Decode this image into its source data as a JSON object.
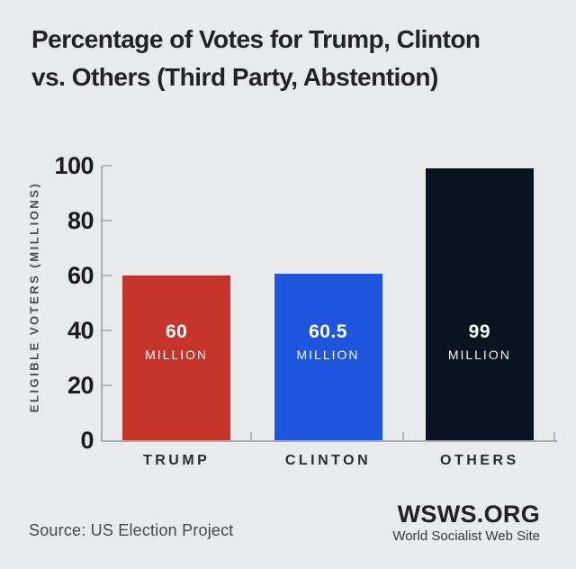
{
  "header": {
    "title_lines": [
      "Percentage of Votes for Trump, Clinton",
      "vs. Others (Third Party, Abstention)"
    ]
  },
  "chart_data": {
    "type": "bar",
    "title": "Percentage of Votes for Trump, Clinton vs. Others (Third Party, Abstention)",
    "categories": [
      "TRUMP",
      "CLINTON",
      "OTHERS"
    ],
    "values": [
      60,
      60.5,
      99
    ],
    "value_labels": [
      "60",
      "60.5",
      "99"
    ],
    "unit_label": "MILLION",
    "bar_colors": [
      "#c5342a",
      "#1f56df",
      "#081520"
    ],
    "bar_label_text_color": "#ffffff",
    "ylabel": "ELIGIBLE VOTERS (MILLIONS)",
    "xlabel": "",
    "yticks": [
      0,
      20,
      40,
      60,
      80,
      100
    ],
    "ylim": [
      0,
      100
    ],
    "grid": false,
    "legend_position": "none"
  },
  "footer": {
    "source": "Source: US Election Project",
    "logo": "WSWS.ORG",
    "logo_subtitle": "World Socialist Web Site"
  },
  "colors": {
    "background": "#e9eaec",
    "axis_line": "#a9abad",
    "tick_mark": "#b3b5b7",
    "title_text": "#232325",
    "ytick_label_text": "#1b1b1d",
    "axis_title_text": "#4a4a4c",
    "category_label_text": "#2b2b2d",
    "source_text": "#47474a",
    "logo_text": "#232023"
  }
}
